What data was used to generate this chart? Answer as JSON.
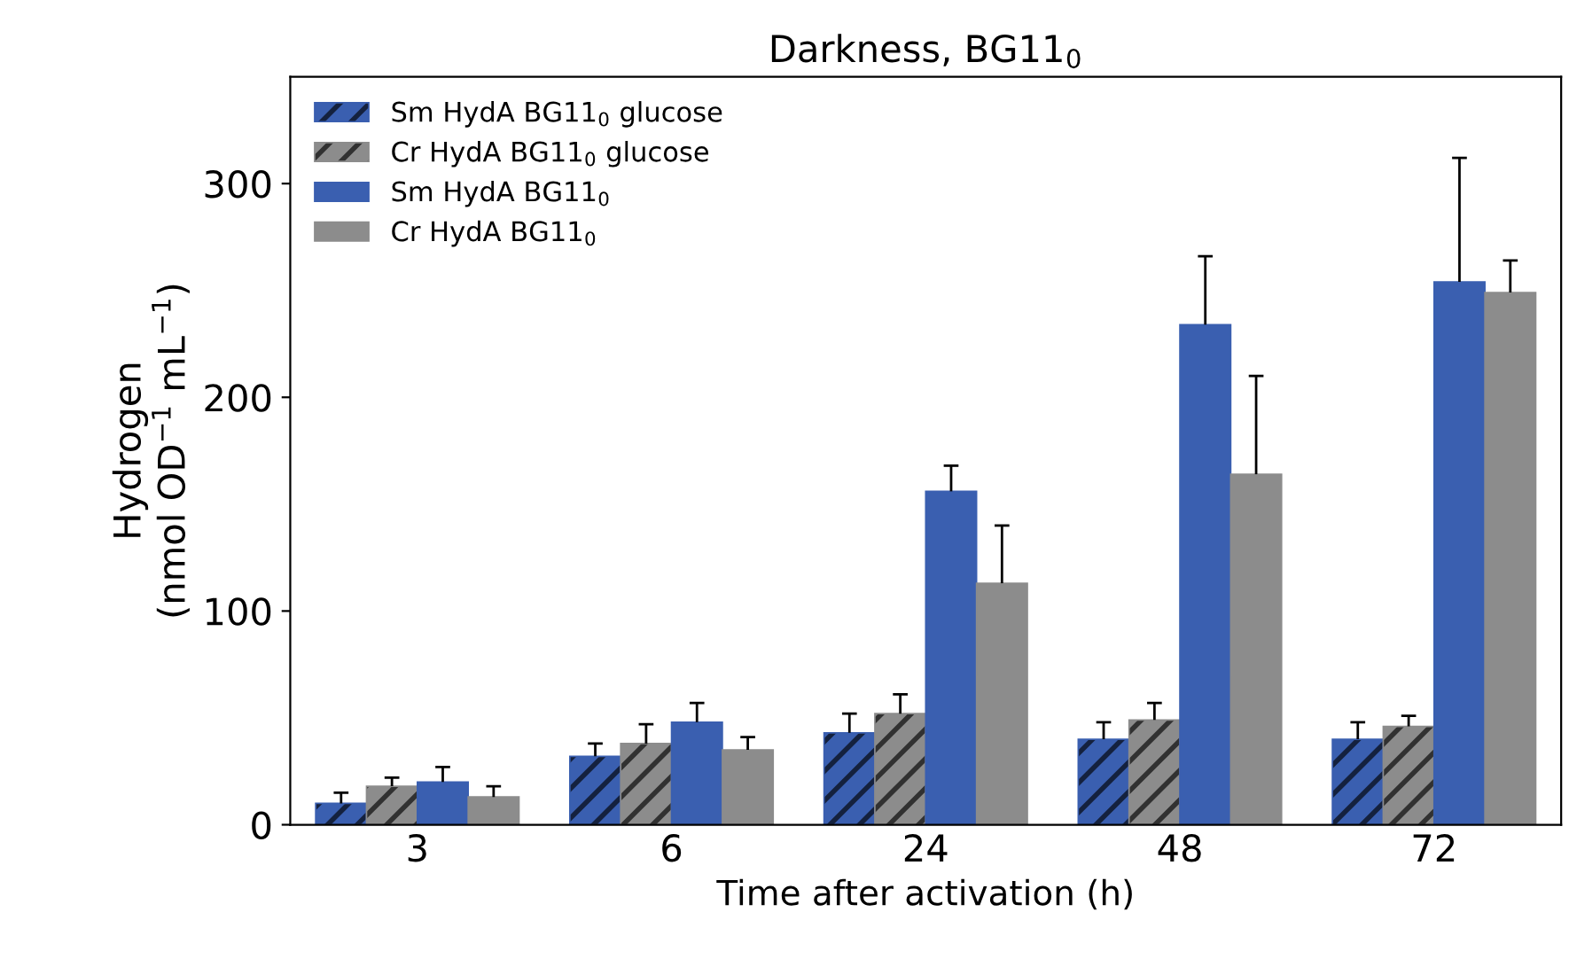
{
  "chart_data": {
    "type": "bar",
    "title": "Darkness, BG11$_{0}$",
    "xlabel": "Time after activation (h)",
    "ylabel": "Hydrogen\n(nmol OD$^{−1}$ mL$^{−1}$)",
    "categories": [
      "3",
      "6",
      "24",
      "48",
      "72"
    ],
    "series": [
      {
        "name": "Sm HydA BG11$_{0}$ glucose",
        "color": "#3a5fb0",
        "values": [
          10,
          32,
          43,
          40,
          40
        ],
        "errors": [
          [
            10,
            15
          ],
          [
            32,
            38
          ],
          [
            43,
            52
          ],
          [
            40,
            48
          ],
          [
            40,
            48
          ]
        ]
      },
      {
        "name": "Cr HydA BG11$_{0}$ glucose",
        "color": "#8c8c8c",
        "values": [
          18,
          38,
          52,
          49,
          46
        ],
        "errors": [
          [
            18,
            22
          ],
          [
            38,
            47
          ],
          [
            52,
            61
          ],
          [
            49,
            57
          ],
          [
            46,
            51
          ]
        ]
      },
      {
        "name": "Sm HydA BG11$_{0}$",
        "color": "#3a5fb0",
        "values": [
          20,
          48,
          156,
          234,
          254
        ],
        "errors": [
          [
            20,
            27
          ],
          [
            48,
            57
          ],
          [
            156,
            168
          ],
          [
            234,
            266
          ],
          [
            254,
            312
          ]
        ]
      },
      {
        "name": "Cr HydA BG11$_{0}$",
        "color": "#8c8c8c",
        "values": [
          13,
          35,
          113,
          164,
          249
        ],
        "errors": [
          [
            13,
            18
          ],
          [
            35,
            41
          ],
          [
            113,
            140
          ],
          [
            164,
            210
          ],
          [
            249,
            264
          ]
        ]
      }
    ],
    "ylim": [
      0,
      350
    ],
    "yticks": [
      0,
      100,
      200,
      300
    ],
    "grid": false,
    "legend": "top left"
  }
}
